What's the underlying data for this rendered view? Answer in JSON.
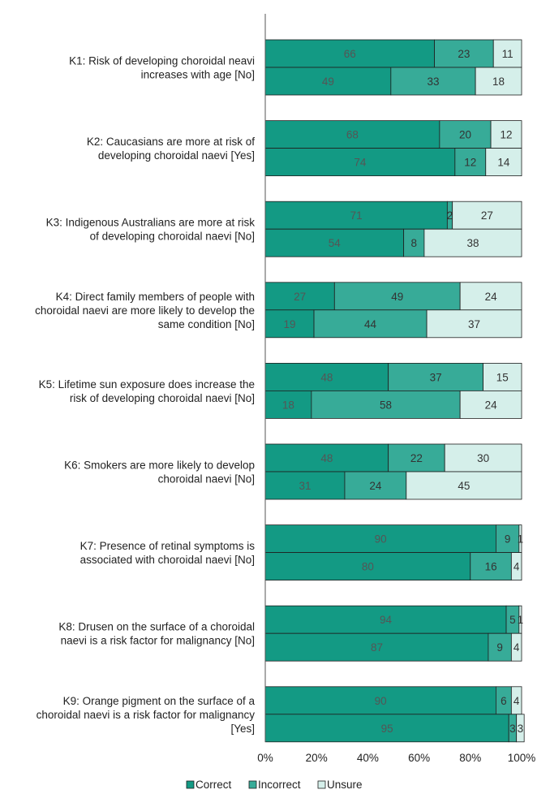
{
  "chart_data": {
    "type": "bar",
    "orientation": "horizontal",
    "stacked": true,
    "percent": true,
    "xlim": [
      0,
      100
    ],
    "x_ticks": [
      "0%",
      "20%",
      "40%",
      "60%",
      "80%",
      "100%"
    ],
    "grid": false,
    "legend_position": "bottom",
    "series_names": [
      "Correct",
      "Incorrect",
      "Unsure"
    ],
    "colors": {
      "correct": "#139a84",
      "incorrect": "#37ab98",
      "unsure": "#d5efea",
      "border": "#1f1f1f",
      "value_text_dark": "#555555",
      "value_text": "#333333",
      "axis": "#555555"
    },
    "categories": [
      {
        "label_lines": [
          "K1: Risk of developing choroidal neavi",
          "increases with age [No]"
        ],
        "bars": [
          {
            "correct": 66,
            "incorrect": 23,
            "unsure": 11
          },
          {
            "correct": 49,
            "incorrect": 33,
            "unsure": 18
          }
        ]
      },
      {
        "label_lines": [
          "K2: Caucasians are more at risk of",
          "developing choroidal naevi [Yes]"
        ],
        "bars": [
          {
            "correct": 68,
            "incorrect": 20,
            "unsure": 12
          },
          {
            "correct": 74,
            "incorrect": 12,
            "unsure": 14
          }
        ]
      },
      {
        "label_lines": [
          "K3: Indigenous Australians are more at risk",
          "of developing choroidal naevi [No]"
        ],
        "bars": [
          {
            "correct": 71,
            "incorrect": 2,
            "unsure": 27
          },
          {
            "correct": 54,
            "incorrect": 8,
            "unsure": 38
          }
        ]
      },
      {
        "label_lines": [
          "K4: Direct family members of people with",
          "choroidal naevi are more likely to develop the",
          "same condition [No]"
        ],
        "bars": [
          {
            "correct": 27,
            "incorrect": 49,
            "unsure": 24
          },
          {
            "correct": 19,
            "incorrect": 44,
            "unsure": 37
          }
        ]
      },
      {
        "label_lines": [
          "K5: Lifetime sun exposure does increase the",
          "risk of developing choroidal naevi [No]"
        ],
        "bars": [
          {
            "correct": 48,
            "incorrect": 37,
            "unsure": 15
          },
          {
            "correct": 18,
            "incorrect": 58,
            "unsure": 24
          }
        ]
      },
      {
        "label_lines": [
          "K6: Smokers are more likely to develop",
          "choroidal naevi [No]"
        ],
        "bars": [
          {
            "correct": 48,
            "incorrect": 22,
            "unsure": 30
          },
          {
            "correct": 31,
            "incorrect": 24,
            "unsure": 45
          }
        ]
      },
      {
        "label_lines": [
          "K7: Presence of retinal symptoms is",
          "associated with choroidal naevi [No]"
        ],
        "bars": [
          {
            "correct": 90,
            "incorrect": 9,
            "unsure": 1
          },
          {
            "correct": 80,
            "incorrect": 16,
            "unsure": 4
          }
        ]
      },
      {
        "label_lines": [
          "K8: Drusen on the surface of a choroidal",
          "naevi is a risk factor for malignancy [No]"
        ],
        "bars": [
          {
            "correct": 94,
            "incorrect": 5,
            "unsure": 1
          },
          {
            "correct": 87,
            "incorrect": 9,
            "unsure": 4
          }
        ]
      },
      {
        "label_lines": [
          "K9: Orange pigment on the surface of a",
          "choroidal naevi is a risk factor for malignancy",
          "[Yes]"
        ],
        "bars": [
          {
            "correct": 90,
            "incorrect": 6,
            "unsure": 4
          },
          {
            "correct": 95,
            "incorrect": 3,
            "unsure": 3
          }
        ]
      }
    ]
  }
}
